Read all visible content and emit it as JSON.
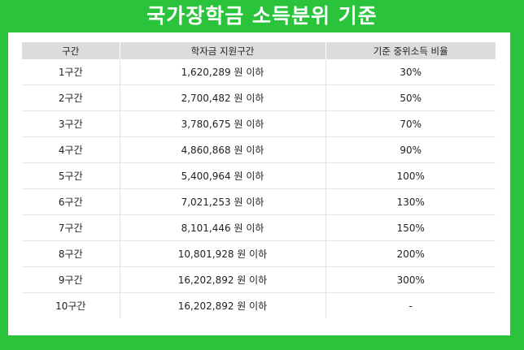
{
  "title": "국가장학금 소득분위 기준",
  "table": {
    "headers": [
      "구간",
      "학자금 지원구간",
      "기준 중위소득 비율"
    ],
    "rows": [
      [
        "1구간",
        "1,620,289 원 이하",
        "30%"
      ],
      [
        "2구간",
        "2,700,482 원 이하",
        "50%"
      ],
      [
        "3구간",
        "3,780,675 원 이하",
        "70%"
      ],
      [
        "4구간",
        "4,860,868 원 이하",
        "90%"
      ],
      [
        "5구간",
        "5,400,964 원 이하",
        "100%"
      ],
      [
        "6구간",
        "7,021,253 원 이하",
        "130%"
      ],
      [
        "7구간",
        "8,101,446 원 이하",
        "150%"
      ],
      [
        "8구간",
        "10,801,928 원 이하",
        "200%"
      ],
      [
        "9구간",
        "16,202,892 원 이하",
        "300%"
      ],
      [
        "10구간",
        "16,202,892 원 이하",
        "-"
      ]
    ]
  },
  "colors": {
    "background": "#2bc33c",
    "header_bg": "#dcdcdc",
    "text": "#222222"
  }
}
